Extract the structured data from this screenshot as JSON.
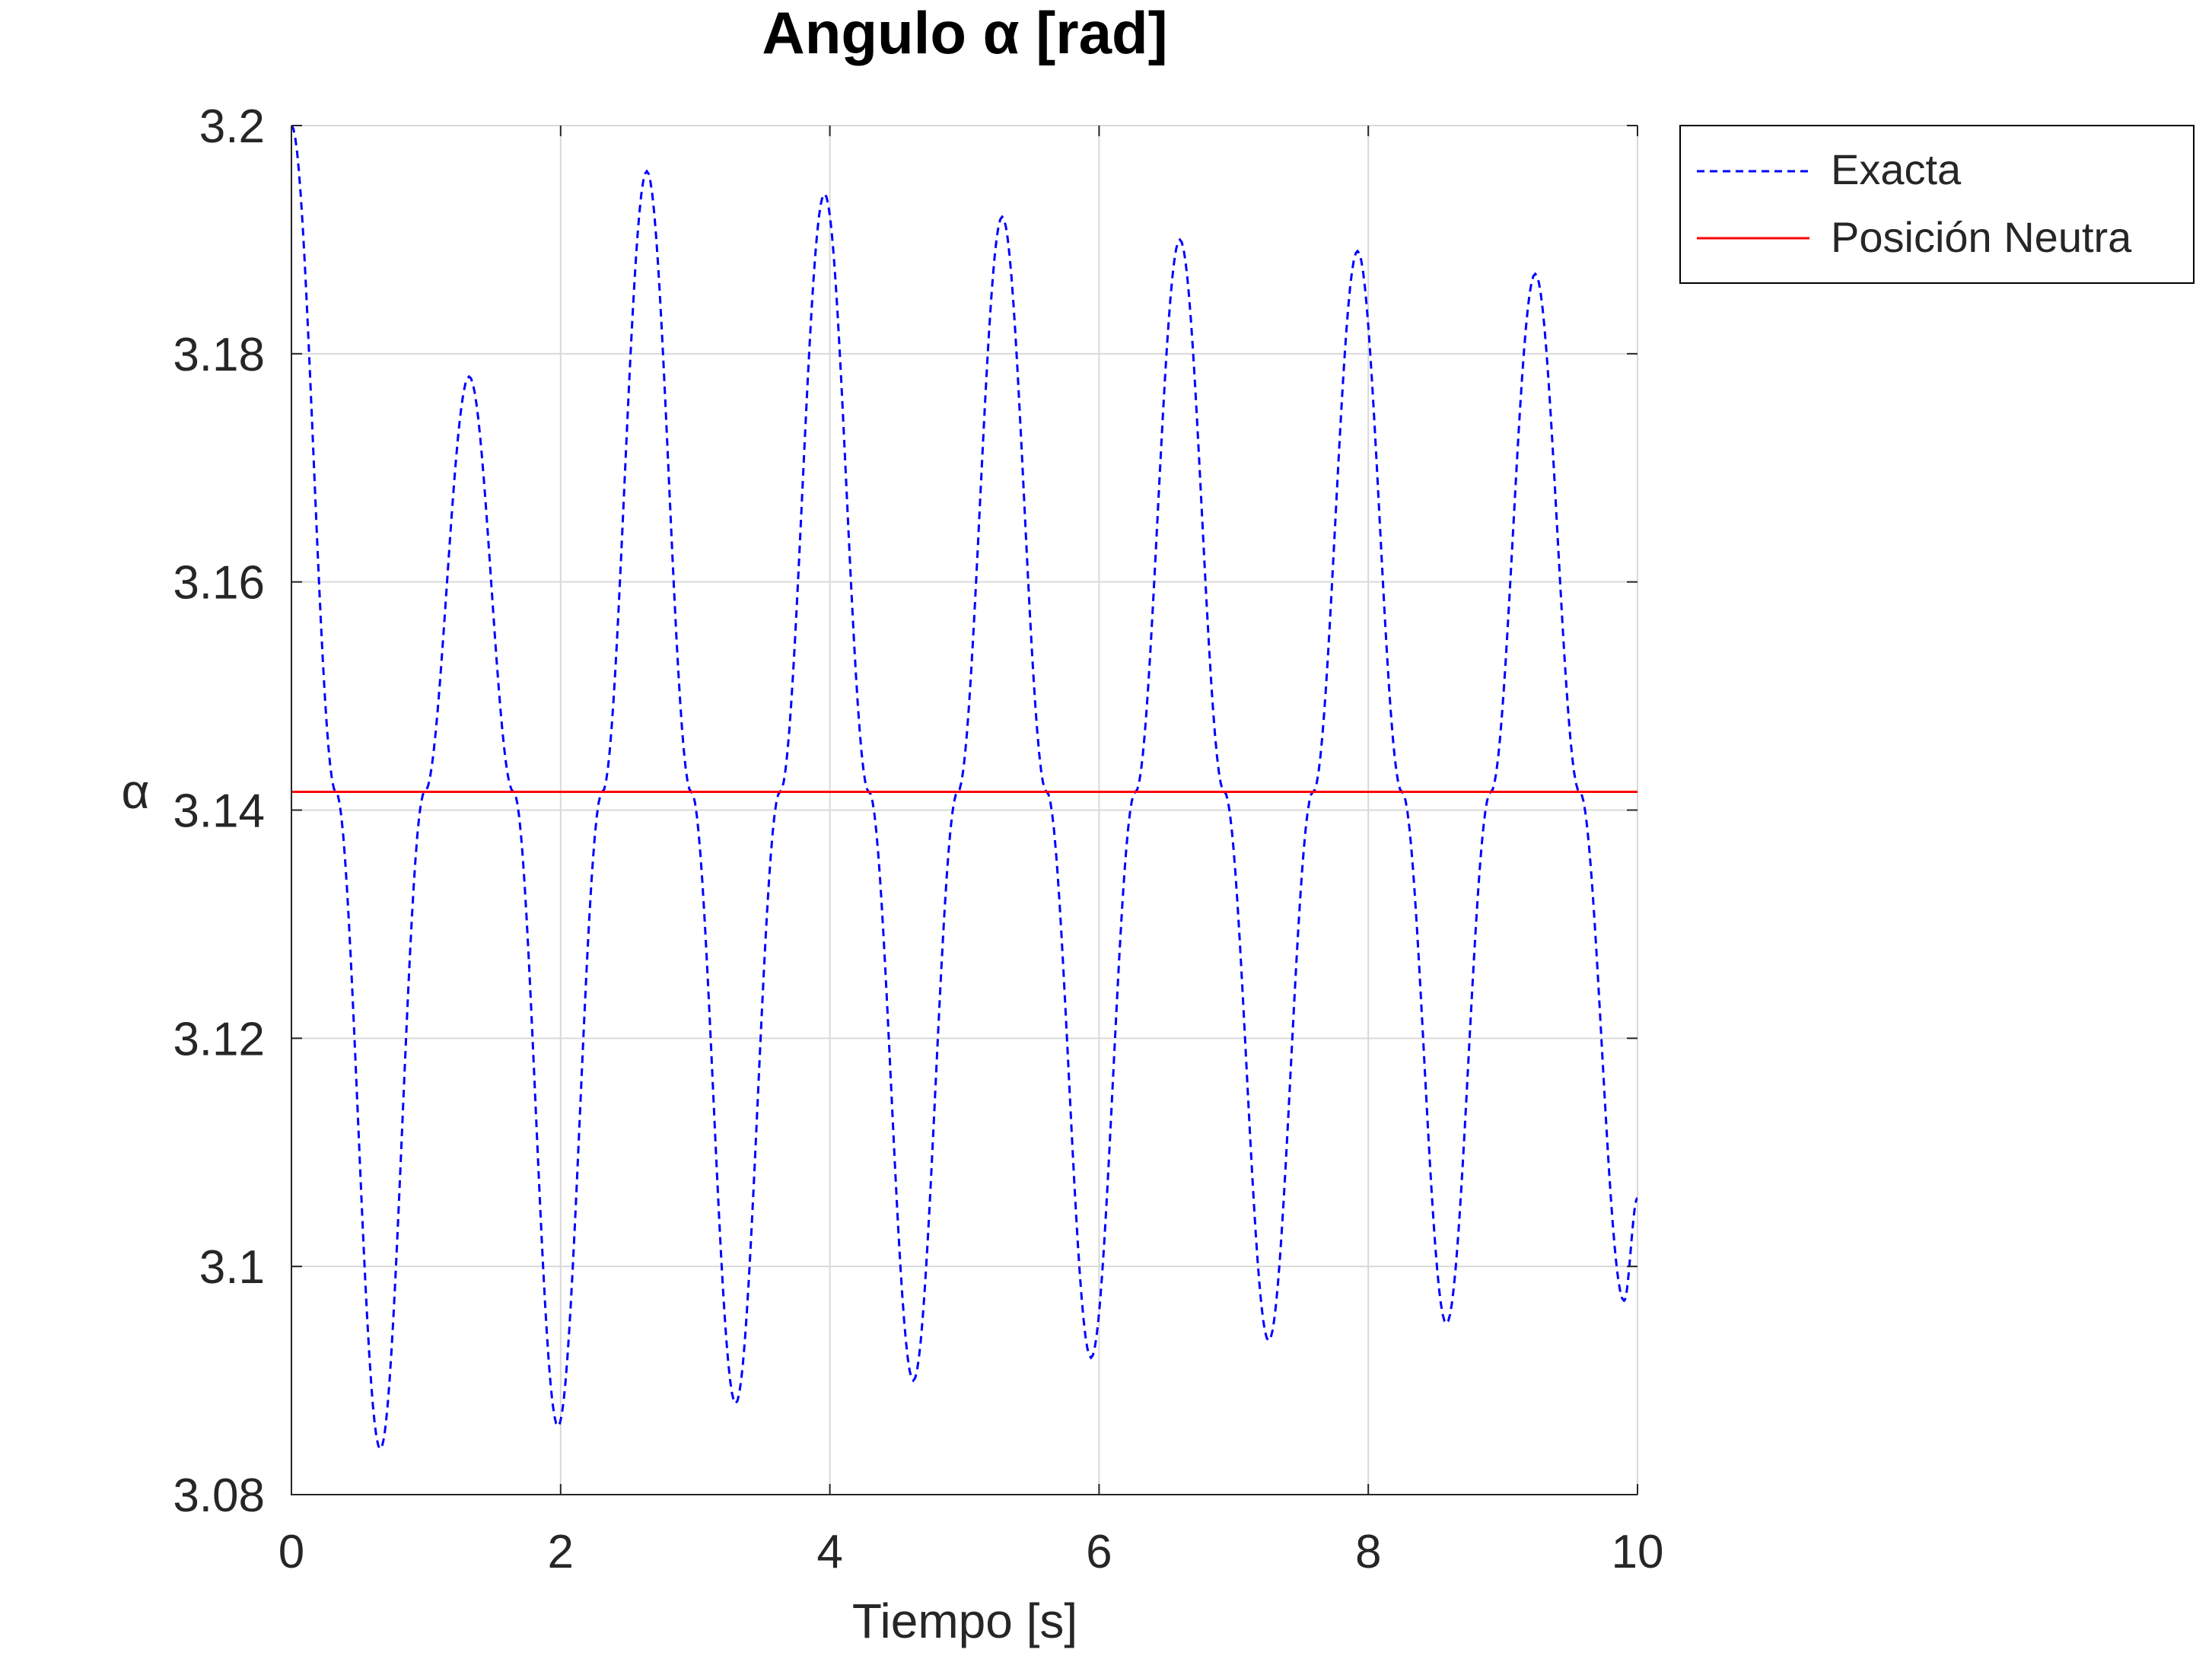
{
  "chart_data": {
    "type": "line",
    "title": "Angulo α [rad]",
    "xlabel": "Tiempo [s]",
    "ylabel": "α",
    "xlim": [
      0,
      10
    ],
    "ylim": [
      3.08,
      3.2
    ],
    "xticks": [
      "0",
      "2",
      "4",
      "6",
      "8",
      "10"
    ],
    "yticks": [
      "3.08",
      "3.1",
      "3.12",
      "3.14",
      "3.16",
      "3.18",
      "3.2"
    ],
    "grid": true,
    "legend_position": "outside top-right",
    "series": [
      {
        "name": "Exacta",
        "color": "#0000ff",
        "style": "dashed",
        "x": [
          0.0,
          0.33,
          0.66,
          0.99,
          1.32,
          1.65,
          1.98,
          2.31,
          2.64,
          2.97,
          3.3,
          3.63,
          3.96,
          4.29,
          4.62,
          4.95,
          5.28,
          5.61,
          5.94,
          6.27,
          6.6,
          6.93,
          7.26,
          7.59,
          7.92,
          8.25,
          8.58,
          8.91,
          9.24,
          9.57,
          9.9,
          10.0
        ],
        "y": [
          3.2,
          3.1416,
          3.084,
          3.1416,
          3.178,
          3.1416,
          3.086,
          3.1416,
          3.196,
          3.1416,
          3.088,
          3.1416,
          3.194,
          3.1416,
          3.09,
          3.1416,
          3.192,
          3.1416,
          3.092,
          3.1416,
          3.19,
          3.1416,
          3.0935,
          3.1416,
          3.189,
          3.1416,
          3.095,
          3.1416,
          3.187,
          3.1416,
          3.097,
          3.106
        ]
      },
      {
        "name": "Posición Neutra",
        "color": "#ff0000",
        "style": "solid",
        "x": [
          0,
          10
        ],
        "y": [
          3.1416,
          3.1416
        ]
      }
    ]
  }
}
